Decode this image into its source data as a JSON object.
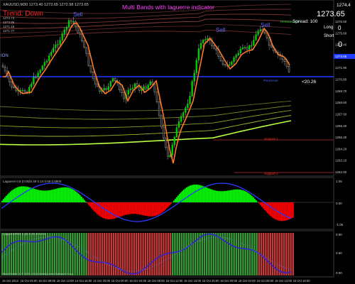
{
  "header": {
    "symbol_line": "XAUUSD,M30  1273.40 1273.65 1272.98 1273.65",
    "title": "Multi Bands with laguerre indicator",
    "trend_label": "Trend: Down",
    "info_lines": [
      "1274.73",
      "1273.85",
      "1271.16",
      "1271.77"
    ]
  },
  "panel": {
    "price_big": "1273.65",
    "price_top": "1274.4",
    "spread_label": "Spread: 100",
    "long_label": "Long",
    "long_value": "0",
    "short_label": "Short",
    "short_value": "0"
  },
  "chart_labels": {
    "sell_labels": [
      "Sell",
      "Sell",
      "Sell"
    ],
    "buy_label": "ION",
    "pivot_label": "Pivot level",
    "pivot_value": "<20.26",
    "support_label": "Support 1",
    "support2_label": "Support 2",
    "resistance_label": "Resistance 1"
  },
  "price_axis": [
    "1276.50",
    "1275.60",
    "1274.40",
    "1273.65",
    "1271.90",
    "1270.80",
    "1269.70",
    "1268.60",
    "1267.50",
    "1266.40",
    "1265.30",
    "1264.20",
    "1263.10",
    "1262.00"
  ],
  "osc1": {
    "label": "Laguerre 0.8 (0.05)0.49  0.14  0.68  0.6900",
    "axis": [
      "1.05",
      "0.00",
      "-1.05"
    ]
  },
  "osc2": {
    "label": "LaguerreRSI 0.60  0.25  0.5  0.6",
    "axis": [
      "0.90",
      "0.50",
      "0.00"
    ],
    "footer": "MetaTrader 4, © 2001-2014 MetaQuotes Software Corp."
  },
  "time_axis": [
    "15 Oct 2013",
    "15 Oct 04:00",
    "15 Oct 08:00",
    "15 Oct 12:00",
    "14 Oct 16:00",
    "14 Oct 20:00",
    "15 Oct 00:00",
    "15 Oct 04:00",
    "15 Oct 08:00",
    "15 Oct 12:00",
    "15 Oct 16:00",
    "15 Oct 20:00",
    "16 Oct 00:00",
    "16 Oct 04:00",
    "16 Oct 08:00",
    "16 Oct 12:00",
    "16 Oct 16:00"
  ],
  "colors": {
    "background": "#000000",
    "bull": "#00cc00",
    "bear": "#ff2a2a",
    "pivot": "#1f3bff",
    "band_green": "#b8ff40",
    "band_red": "#8a3030",
    "osc_line": "#2a3cff",
    "title": "#ff44ff",
    "sell_text": "#5f6bff",
    "trend_text": "#ff2222"
  }
}
